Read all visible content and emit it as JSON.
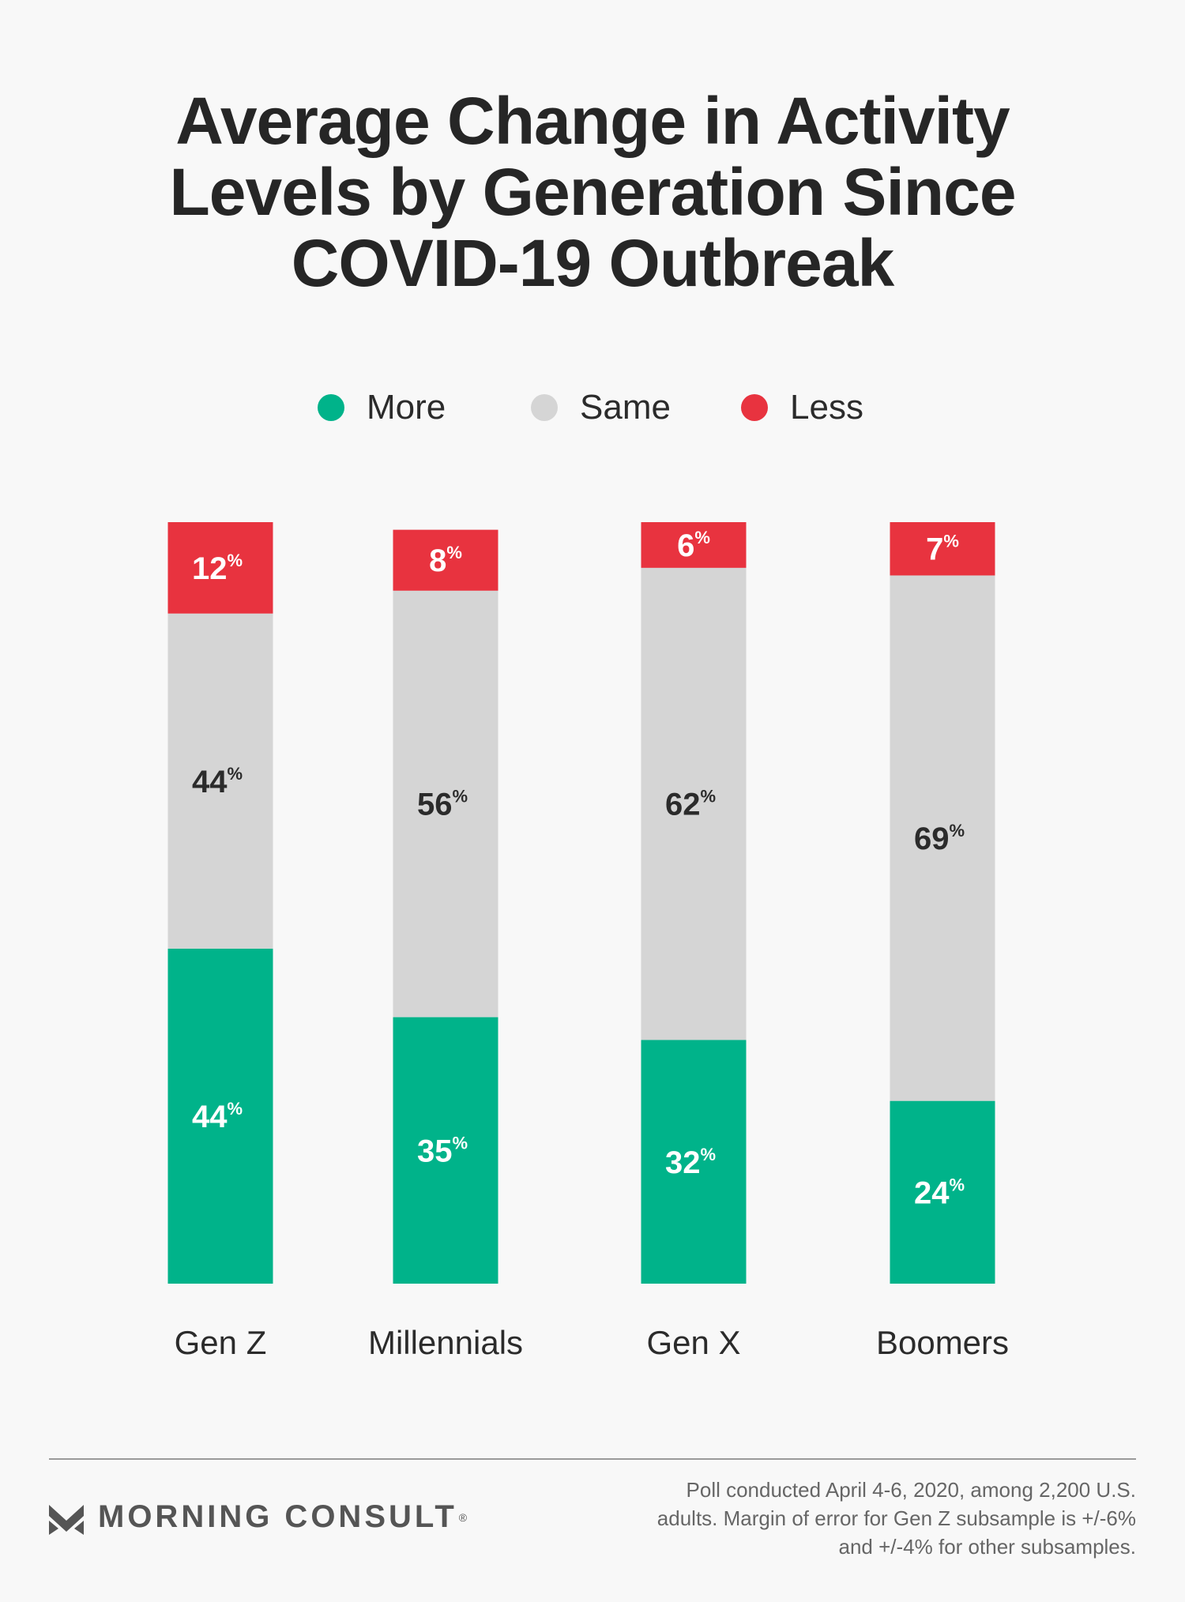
{
  "title_lines": [
    "Average Change in Activity",
    "Levels by Generation Since",
    "COVID-19 Outbreak"
  ],
  "legend": [
    {
      "label": "More",
      "color": "#00b38a"
    },
    {
      "label": "Same",
      "color": "#d5d5d5"
    },
    {
      "label": "Less",
      "color": "#e8333f"
    }
  ],
  "chart_data": {
    "type": "bar",
    "stacked": true,
    "normalized_to_100": true,
    "categories": [
      "Gen Z",
      "Millennials",
      "Gen X",
      "Boomers"
    ],
    "series": [
      {
        "name": "More",
        "color": "#00b38a",
        "values": [
          44,
          35,
          32,
          24
        ]
      },
      {
        "name": "Same",
        "color": "#d5d5d5",
        "values": [
          44,
          56,
          62,
          69
        ]
      },
      {
        "name": "Less",
        "color": "#e8333f",
        "values": [
          12,
          8,
          6,
          7
        ]
      }
    ],
    "value_suffix": "%",
    "legend_position": "top-center",
    "grid": false
  },
  "footer": {
    "logo_text": "MORNING CONSULT",
    "logo_reg": "®",
    "note_lines": [
      "Poll conducted April 4-6, 2020, among 2,200 U.S.",
      "adults. Margin of error for Gen Z subsample is +/-6%",
      "and +/-4% for other subsamples."
    ]
  }
}
